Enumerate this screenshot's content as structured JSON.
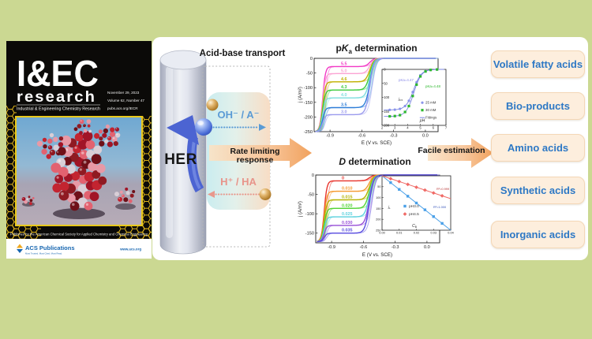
{
  "page": {
    "background": "#cbd892",
    "panel_background": "#ffffff"
  },
  "cover": {
    "logo": "I&EC",
    "logo_sub": "research",
    "subtitle": "Industrial & Engineering Chemistry Research",
    "date": "November 29, 2023",
    "volume": "Volume 62, Number 47",
    "url": "pubs.acs.org/IECR",
    "footer": "Published by the American Chemical Society for Applied Chemistry and Chemical Engineering",
    "publisher": "ACS Publications",
    "publisher_tagline": "Most Trusted. Most Cited. Most Read.",
    "publisher_url": "www.acs.org"
  },
  "scheme": {
    "heading": "Acid-base transport",
    "electrode_label": "HER",
    "anion_path_label": "OH⁻ / A⁻",
    "acid_path_label": "H⁺ / HA",
    "response_label": "Rate limiting response",
    "estimation_label": "Facile estimation"
  },
  "acid_boxes": [
    {
      "label": "Volatile fatty acids"
    },
    {
      "label": "Bio-products"
    },
    {
      "label": "Amino acids"
    },
    {
      "label": "Synthetic acids"
    },
    {
      "label": "Inorganic acids"
    }
  ],
  "colors": {
    "box_bg": "#fdeedd",
    "box_border": "#f4d7b6",
    "box_text": "#2d78c5",
    "anion_text": "#5b9bd5",
    "acid_text": "#e8948a",
    "arrow_orange": "#f09a50",
    "arrow_blue": "#4c64d2"
  },
  "chart_data": [
    {
      "id": "pka",
      "type": "line",
      "title": "pKa determination",
      "title_segments": [
        {
          "t": "p"
        },
        {
          "t": "K",
          "i": true
        },
        {
          "t": "a",
          "sub": true
        },
        {
          "t": " determination"
        }
      ],
      "xlabel": "E (V vs. SCE)",
      "ylabel": "j (A/m²)",
      "xlim": [
        -1.05,
        0.12
      ],
      "ylim": [
        -250,
        0
      ],
      "xticks": [
        -0.9,
        -0.6,
        -0.3,
        0
      ],
      "yticks": [
        0,
        -50,
        -100,
        -150,
        -200,
        -250
      ],
      "onset": -0.97,
      "halfwave": -0.525,
      "floor": -250,
      "series": [
        {
          "label": "5.5",
          "color": "#f23ac6",
          "plateau": -28
        },
        {
          "label": "5.0",
          "color": "#fba4d4",
          "plateau": -52
        },
        {
          "label": "4.6",
          "color": "#c0b000",
          "plateau": -80
        },
        {
          "label": "4.3",
          "color": "#3ecb3e",
          "plateau": -108
        },
        {
          "label": "4.0",
          "color": "#7fdede",
          "plateau": -135
        },
        {
          "label": "3.5",
          "color": "#2e7ed8",
          "plateau": -168
        },
        {
          "label": "3.0",
          "color": "#9c9cee",
          "plateau": -192
        }
      ],
      "inset": {
        "kind": "sigmoid",
        "xlabel": "pH",
        "ylabel": "j0.5",
        "ylabel_segments": [
          {
            "t": "j",
            "i": true
          },
          {
            "t": "0.5",
            "sub": true
          }
        ],
        "xlim": [
          2,
          7
        ],
        "ymax": 200,
        "xticks": [
          2,
          3,
          4,
          5,
          6,
          7
        ],
        "yticks": [
          0,
          50,
          100,
          150,
          200
        ],
        "marker_x": [
          2.6,
          3,
          3.4,
          3.8,
          4.1,
          4.4,
          4.7,
          5,
          5.4,
          5.8,
          6.3
        ],
        "fit_color": "#7a86e0",
        "annotations": [
          {
            "text": "pKa=4.47",
            "color": "#8a8ae8"
          },
          {
            "text": "pKa=4.48",
            "color": "#2eb82e"
          }
        ],
        "legend": [
          {
            "label": "25 mM",
            "marker": "circle",
            "color": "#8a94ea"
          },
          {
            "label": "30 mM",
            "marker": "square",
            "color": "#2eb82e"
          },
          {
            "label": "Fittings",
            "marker": "line",
            "color": "#7a86e0"
          }
        ],
        "series": [
          {
            "name": "25 mM",
            "marker": "circle",
            "color": "#8a94ea",
            "pka": 4.47,
            "plateau": 145
          },
          {
            "name": "30 mM",
            "marker": "square",
            "color": "#2eb82e",
            "pka": 4.48,
            "plateau": 168
          }
        ]
      }
    },
    {
      "id": "d",
      "type": "line",
      "title": "D determination",
      "title_segments": [
        {
          "t": "D",
          "i": true
        },
        {
          "t": " determination"
        }
      ],
      "xlabel": "E (V vs. SCE)",
      "ylabel": "j (A/m²)",
      "xlim": [
        -1.05,
        0.12
      ],
      "ylim": [
        -175,
        0
      ],
      "xticks": [
        -0.9,
        -0.6,
        -0.3,
        0
      ],
      "yticks": [
        0,
        -50,
        -100,
        -150
      ],
      "onset": -0.97,
      "halfwave": -0.545,
      "floor": -172,
      "series": [
        {
          "label": "0",
          "color": "#e8342c",
          "plateau": -15
        },
        {
          "label": "0.010",
          "color": "#f59a30",
          "plateau": -42
        },
        {
          "label": "0.015",
          "color": "#b5b200",
          "plateau": -64
        },
        {
          "label": "0.020",
          "color": "#52d434",
          "plateau": -86
        },
        {
          "label": "0.025",
          "color": "#5ed2de",
          "plateau": -108
        },
        {
          "label": "0.030",
          "color": "#9850d8",
          "plateau": -130
        },
        {
          "label": "0.035",
          "color": "#5a4ee0",
          "plateau": -150
        }
      ],
      "inset": {
        "kind": "linear",
        "xlabel": "CB",
        "xlabel_segments": [
          {
            "t": "C",
            "i": true
          },
          {
            "t": "B",
            "sub": true
          }
        ],
        "ylabel": "jL",
        "ylabel_segments": [
          {
            "t": "j",
            "i": true
          },
          {
            "t": "L",
            "sub": true
          }
        ],
        "xlim": [
          0,
          0.04
        ],
        "ymax": 250,
        "xticks": [
          0,
          0.01,
          0.02,
          0.03,
          0.04
        ],
        "yticks": [
          0,
          50,
          100,
          150,
          200,
          250
        ],
        "marker_x": [
          0.005,
          0.01,
          0.015,
          0.02,
          0.025,
          0.03,
          0.035
        ],
        "series": [
          {
            "name": "pH3.0",
            "marker": "square",
            "color": "#4aa0e8",
            "slope": 6250,
            "r2": "R²=1.000",
            "r2_color": "#3050b8"
          },
          {
            "name": "pH4.5",
            "marker": "diamond",
            "color": "#f06a66",
            "slope": 2625,
            "r2": "R²=0.999",
            "r2_color": "#b83838"
          }
        ],
        "legend": [
          {
            "label": "pH3.0",
            "marker": "square",
            "color": "#4aa0e8"
          },
          {
            "label": "pH4.5",
            "marker": "diamond",
            "color": "#f06a66"
          }
        ]
      }
    }
  ]
}
